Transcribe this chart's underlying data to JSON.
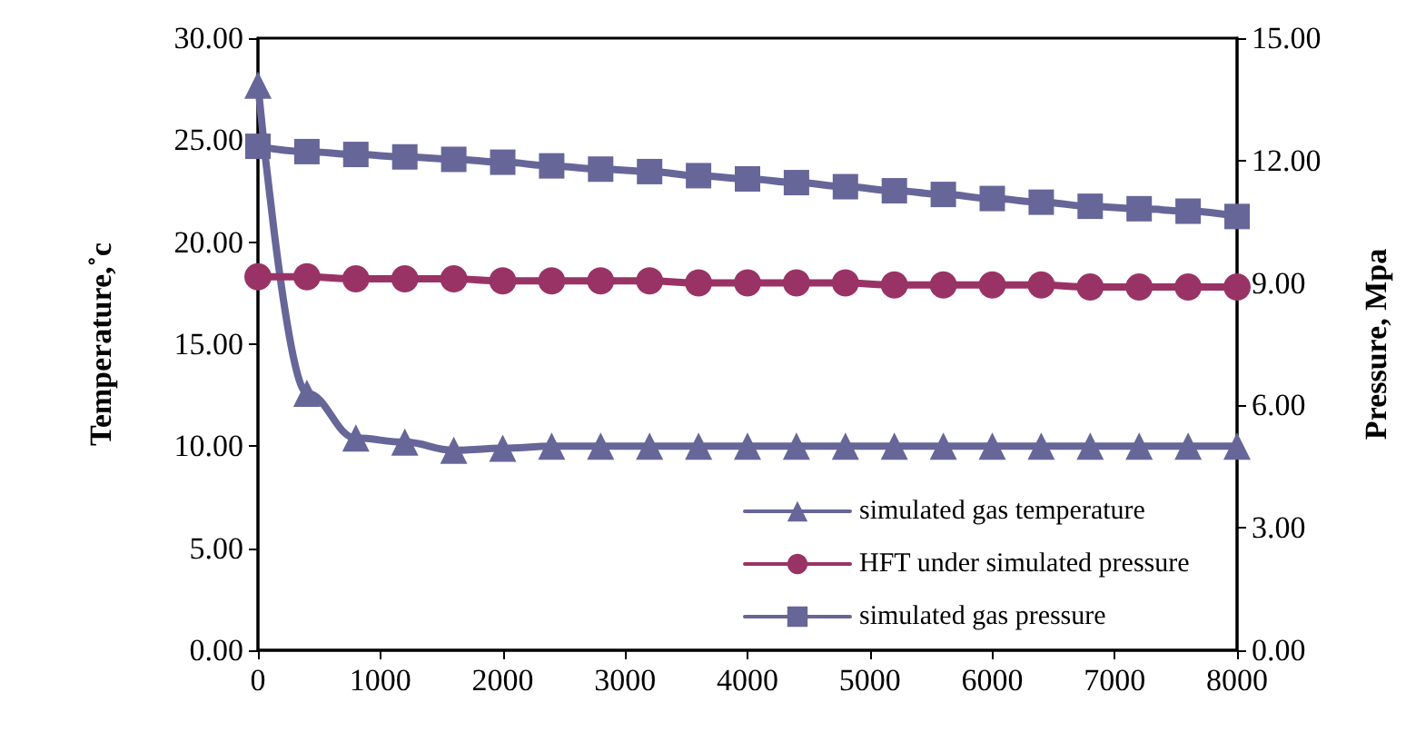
{
  "chart_data": {
    "type": "line",
    "x": [
      0,
      400,
      800,
      1200,
      1600,
      2000,
      2400,
      2800,
      3200,
      3600,
      4000,
      4400,
      4800,
      5200,
      5600,
      6000,
      6400,
      6800,
      7200,
      7600,
      8000
    ],
    "series": [
      {
        "name": "simulated gas temperature",
        "color": "#666699",
        "marker": "triangle",
        "values": [
          27.7,
          12.6,
          10.4,
          10.2,
          9.8,
          9.9,
          10.0,
          10.0,
          10.0,
          10.0,
          10.0,
          10.0,
          10.0,
          10.0,
          10.0,
          10.0,
          10.0,
          10.0,
          10.0,
          10.0,
          10.0
        ]
      },
      {
        "name": "HFT under simulated pressure",
        "color": "#993366",
        "marker": "circle",
        "values": [
          18.3,
          18.3,
          18.2,
          18.2,
          18.2,
          18.1,
          18.1,
          18.1,
          18.1,
          18.0,
          18.0,
          18.0,
          18.0,
          17.9,
          17.9,
          17.9,
          17.9,
          17.8,
          17.8,
          17.8,
          17.8
        ]
      },
      {
        "name": "simulated gas pressure",
        "color": "#666699",
        "marker": "square",
        "axis": "y2",
        "values": [
          12.35,
          12.22,
          12.15,
          12.09,
          12.03,
          11.96,
          11.87,
          11.79,
          11.73,
          11.63,
          11.55,
          11.46,
          11.36,
          11.26,
          11.17,
          11.07,
          10.98,
          10.88,
          10.82,
          10.76,
          10.63
        ]
      }
    ],
    "ylabel": "Temperature,˚c",
    "y2label": "Pressure, Mpa",
    "xlim": [
      0,
      8000
    ],
    "xticks": [
      0,
      1000,
      2000,
      3000,
      4000,
      5000,
      6000,
      7000,
      8000
    ],
    "ylim": [
      0,
      30
    ],
    "yticks": [
      {
        "value": 0,
        "label": "0.00"
      },
      {
        "value": 5,
        "label": "5.00"
      },
      {
        "value": 10,
        "label": "10.00"
      },
      {
        "value": 15,
        "label": "15.00"
      },
      {
        "value": 20,
        "label": "20.00"
      },
      {
        "value": 25,
        "label": "25.00"
      },
      {
        "value": 30,
        "label": "30.00"
      }
    ],
    "y2lim": [
      0,
      15
    ],
    "y2ticks": [
      {
        "value": 0,
        "label": "0.00"
      },
      {
        "value": 3,
        "label": "3.00"
      },
      {
        "value": 6,
        "label": "6.00"
      },
      {
        "value": 9,
        "label": "9.00"
      },
      {
        "value": 12,
        "label": "12.00"
      },
      {
        "value": 15,
        "label": "15.00"
      }
    ],
    "grid": false,
    "legend": "bottom right",
    "line_style": "solid"
  }
}
